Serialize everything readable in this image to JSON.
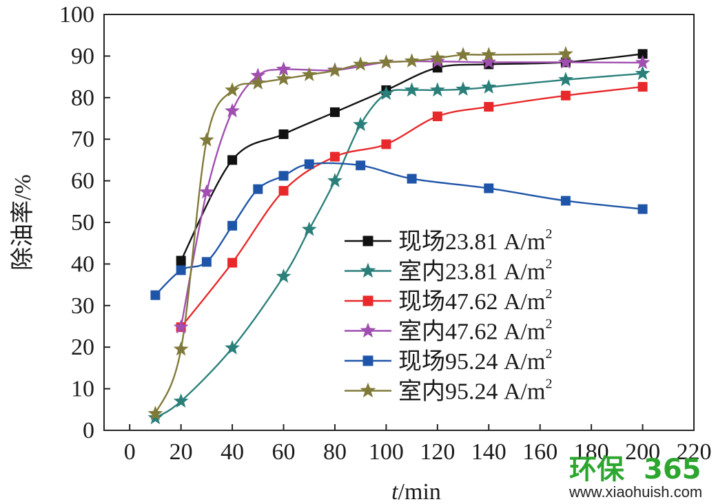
{
  "chart_data": {
    "type": "line",
    "xlabel_italic": "t",
    "xlabel_unit": "/min",
    "ylabel": "除油率/%",
    "xlim": [
      -10,
      220
    ],
    "ylim": [
      0,
      100
    ],
    "x_ticks": [
      0,
      20,
      40,
      60,
      80,
      100,
      120,
      140,
      160,
      180,
      200,
      220
    ],
    "y_ticks": [
      0,
      10,
      20,
      30,
      40,
      50,
      60,
      70,
      80,
      90,
      100
    ],
    "legend_position": "center-right",
    "series": [
      {
        "name": "现场23.81 A/m",
        "name_sup": "2",
        "color": "#111111",
        "marker": "square",
        "x": [
          20,
          40,
          60,
          80,
          100,
          120,
          140,
          170,
          200
        ],
        "y": [
          40.8,
          65.0,
          71.2,
          76.5,
          81.8,
          87.2,
          88.0,
          88.5,
          90.5
        ]
      },
      {
        "name": "室内23.81 A/m",
        "name_sup": "2",
        "color": "#2a7f7a",
        "marker": "star",
        "x": [
          10,
          20,
          40,
          60,
          70,
          80,
          90,
          100,
          110,
          120,
          130,
          140,
          170,
          200
        ],
        "y": [
          3.0,
          7.0,
          19.8,
          37.0,
          48.3,
          60.0,
          73.5,
          81.0,
          81.8,
          81.8,
          82.0,
          82.5,
          84.3,
          85.8
        ]
      },
      {
        "name": "现场47.62 A/m",
        "name_sup": "2",
        "color": "#e8282a",
        "marker": "square",
        "x": [
          20,
          40,
          60,
          80,
          100,
          120,
          140,
          170,
          200
        ],
        "y": [
          24.8,
          40.3,
          57.6,
          65.8,
          68.8,
          75.5,
          77.8,
          80.5,
          82.6
        ]
      },
      {
        "name": "室内47.62 A/m",
        "name_sup": "2",
        "color": "#a04fb0",
        "marker": "star",
        "x": [
          20,
          30,
          40,
          50,
          60,
          80,
          100,
          120,
          140,
          170,
          200
        ],
        "y": [
          24.8,
          57.3,
          76.8,
          85.3,
          86.8,
          86.6,
          88.5,
          88.7,
          88.5,
          88.5,
          88.4
        ]
      },
      {
        "name": "现场95.24 A/m",
        "name_sup": "2",
        "color": "#1f55a8",
        "marker": "square",
        "x": [
          10,
          20,
          30,
          40,
          50,
          60,
          70,
          90,
          110,
          140,
          170,
          200
        ],
        "y": [
          32.5,
          38.5,
          40.5,
          49.2,
          58.0,
          61.2,
          64.0,
          63.7,
          60.5,
          58.2,
          55.2,
          53.2
        ]
      },
      {
        "name": "室内95.24 A/m",
        "name_sup": "2",
        "color": "#807a3a",
        "marker": "star",
        "x": [
          10,
          20,
          30,
          40,
          50,
          60,
          70,
          80,
          90,
          100,
          110,
          120,
          130,
          140,
          170
        ],
        "y": [
          4.0,
          19.5,
          69.8,
          81.8,
          83.5,
          84.5,
          85.5,
          86.5,
          88.0,
          88.5,
          88.8,
          89.5,
          90.3,
          90.3,
          90.5
        ]
      }
    ]
  },
  "watermark": {
    "logo_text_cn": "环保",
    "logo_text_num": "365",
    "url": "www.xiaohuish.com",
    "logo_green": "#2ca62f"
  }
}
